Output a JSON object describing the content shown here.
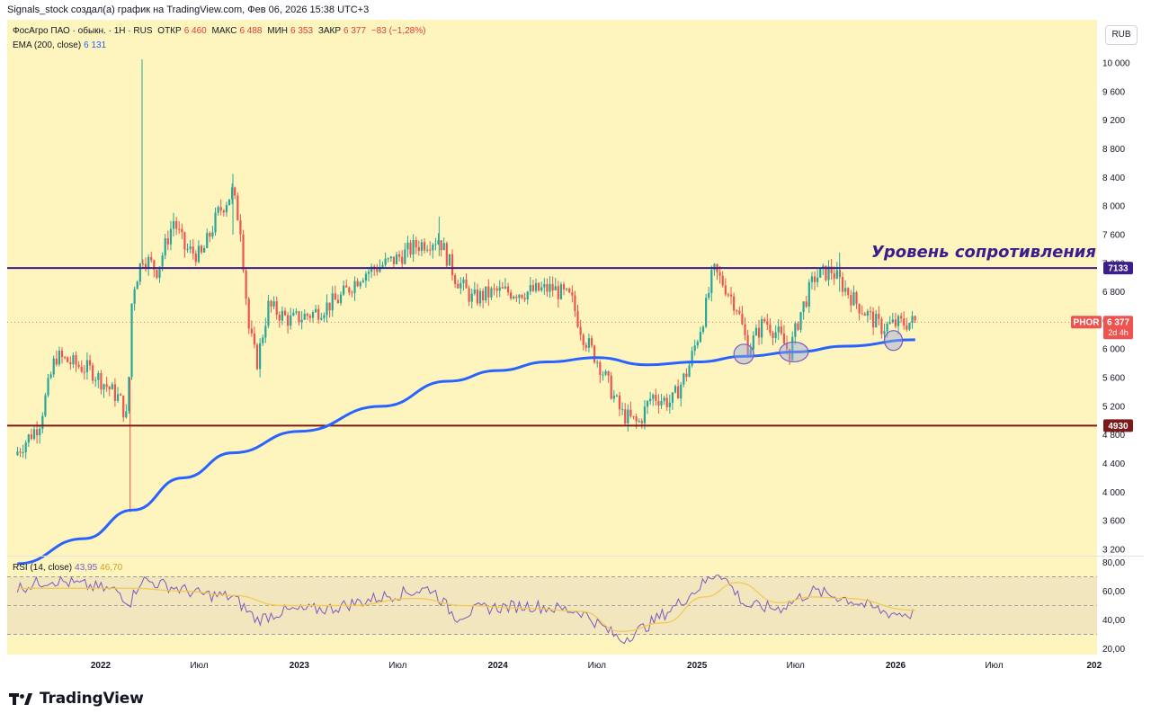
{
  "header": {
    "attribution": "Signals_stock создал(а) график на TradingView.com, Фев 06, 2026 15:38 UTC+3"
  },
  "legend": {
    "symbol": "ФосАгро ПАО · обыкн. · 1Н · RUS",
    "open_label": "ОТКР",
    "open": "6 460",
    "high_label": "МАКС",
    "high": "6 488",
    "low_label": "МИН",
    "low": "6 353",
    "close_label": "ЗАКР",
    "close": "6 377",
    "change": "−83 (−1,28%)",
    "ema_label": "EMA (200, close)",
    "ema_value": "6 131"
  },
  "currency": "RUB",
  "badges": {
    "ticker": "PHOR",
    "price": "6 377",
    "countdown": "2d 4h",
    "resistance": "7133",
    "support": "4930"
  },
  "annotation": "Уровень сопротивления",
  "rsi_legend": {
    "label": "RSI (14, close)",
    "value": "43,95",
    "ma_value": "46,70"
  },
  "footer": {
    "brand": "TradingView",
    "logo": "tradingview-logo-icon"
  },
  "colors": {
    "background": "#fdf5bd",
    "up": "#26a69a",
    "down": "#ef5350",
    "ema": "#2962ff",
    "resistance_line": "#3b1e8c",
    "support_line": "#7b1a1a",
    "rsi_line": "#7e57c2",
    "rsi_ma": "#f2c94c",
    "annotation_text": "#3b1e8c",
    "price_badge": "#ef5350"
  },
  "chart_data": [
    {
      "type": "candlestick",
      "title": "ФосАгро ПАО · обыкн. · 1Н · RUS",
      "x_ticks": [
        "2022",
        "Июл",
        "2023",
        "Июл",
        "2024",
        "Июл",
        "2025",
        "Июл",
        "2026",
        "Июл",
        "202"
      ],
      "y_ticks": [
        3200,
        3600,
        4000,
        4400,
        4800,
        5200,
        5600,
        6000,
        6400,
        6800,
        7200,
        7600,
        8000,
        8400,
        8800,
        9200,
        9600,
        10000
      ],
      "ylim": [
        2950,
        10150
      ],
      "y_tick_labels": [
        "3 200",
        "3 600",
        "4 000",
        "4 400",
        "4 800",
        "5 200",
        "5 600",
        "6 000",
        "6 400",
        "6 800",
        "7 200",
        "7 600",
        "8 000",
        "8 400",
        "8 800",
        "9 200",
        "9 600",
        "10 000"
      ],
      "horizontal_levels": [
        {
          "name": "resistance",
          "value": 7133
        },
        {
          "name": "support",
          "value": 4930
        }
      ],
      "last_price": 6377,
      "price_path": [
        [
          "2021-08-01",
          4520
        ],
        [
          "2021-09-15",
          4950
        ],
        [
          "2021-10-15",
          5900
        ],
        [
          "2021-11-15",
          5800
        ],
        [
          "2021-12-20",
          5700
        ],
        [
          "2022-02-10",
          5300
        ],
        [
          "2022-02-24",
          5000
        ],
        [
          "2022-03-05",
          6800
        ],
        [
          "2022-03-25",
          7300
        ],
        [
          "2022-04-20",
          7100
        ],
        [
          "2022-05-20",
          7800
        ],
        [
          "2022-06-10",
          7400
        ],
        [
          "2022-07-10",
          7300
        ],
        [
          "2022-08-10",
          7900
        ],
        [
          "2022-09-05",
          8200
        ],
        [
          "2022-09-20",
          7700
        ],
        [
          "2022-10-05",
          6300
        ],
        [
          "2022-10-20",
          5800
        ],
        [
          "2022-11-10",
          6600
        ],
        [
          "2022-12-20",
          6400
        ],
        [
          "2023-02-01",
          6500
        ],
        [
          "2023-03-20",
          6700
        ],
        [
          "2023-05-01",
          7050
        ],
        [
          "2023-07-01",
          7250
        ],
        [
          "2023-08-10",
          7450
        ],
        [
          "2023-09-20",
          7550
        ],
        [
          "2023-10-20",
          7000
        ],
        [
          "2023-11-20",
          6700
        ],
        [
          "2024-01-01",
          6800
        ],
        [
          "2024-03-01",
          6800
        ],
        [
          "2024-04-15",
          6850
        ],
        [
          "2024-05-20",
          6700
        ],
        [
          "2024-06-10",
          6200
        ],
        [
          "2024-07-10",
          5800
        ],
        [
          "2024-08-20",
          5100
        ],
        [
          "2024-09-20",
          4950
        ],
        [
          "2024-10-15",
          5350
        ],
        [
          "2024-11-20",
          5250
        ],
        [
          "2024-12-20",
          5700
        ],
        [
          "2025-01-20",
          6500
        ],
        [
          "2025-02-05",
          7100
        ],
        [
          "2025-02-25",
          6900
        ],
        [
          "2025-03-20",
          6600
        ],
        [
          "2025-04-10",
          6000
        ],
        [
          "2025-05-10",
          6400
        ],
        [
          "2025-06-05",
          6200
        ],
        [
          "2025-06-25",
          5950
        ],
        [
          "2025-07-15",
          6500
        ],
        [
          "2025-08-10",
          7000
        ],
        [
          "2025-09-10",
          7100
        ],
        [
          "2025-10-05",
          6850
        ],
        [
          "2025-10-25",
          6650
        ],
        [
          "2025-11-20",
          6450
        ],
        [
          "2025-12-10",
          6300
        ],
        [
          "2026-01-05",
          6350
        ],
        [
          "2026-02-06",
          6377
        ]
      ],
      "series": [
        {
          "name": "EMA (200, close)",
          "x": [
            "2021-08-01",
            "2021-12-01",
            "2022-03-01",
            "2022-06-01",
            "2022-09-01",
            "2023-01-01",
            "2023-06-01",
            "2023-10-01",
            "2024-01-01",
            "2024-04-01",
            "2024-07-01",
            "2024-10-01",
            "2025-01-01",
            "2025-04-01",
            "2025-07-01",
            "2025-10-01",
            "2026-02-06"
          ],
          "values": [
            3000,
            3350,
            3750,
            4200,
            4550,
            4850,
            5200,
            5550,
            5700,
            5820,
            5880,
            5780,
            5820,
            5900,
            5960,
            6040,
            6131
          ]
        }
      ]
    },
    {
      "type": "line",
      "title": "RSI (14, close)",
      "y_ticks": [
        20,
        40,
        60,
        80
      ],
      "y_tick_labels": [
        "20,00",
        "40,00",
        "60,00",
        "80,00"
      ],
      "ylim": [
        16,
        84
      ],
      "band": [
        30,
        70
      ],
      "midline": 50,
      "series": [
        {
          "name": "RSI (14, close)",
          "x": [
            "2021-08-01",
            "2021-10-01",
            "2021-12-01",
            "2022-02-01",
            "2022-02-24",
            "2022-03-15",
            "2022-05-01",
            "2022-07-01",
            "2022-09-01",
            "2022-10-15",
            "2022-12-01",
            "2023-03-01",
            "2023-06-01",
            "2023-09-01",
            "2023-10-15",
            "2023-12-01",
            "2024-03-01",
            "2024-06-01",
            "2024-08-15",
            "2024-10-01",
            "2024-12-01",
            "2025-02-10",
            "2025-04-01",
            "2025-06-01",
            "2025-08-01",
            "2025-10-01",
            "2025-12-15",
            "2026-02-06"
          ],
          "values": [
            62,
            68,
            64,
            60,
            52,
            68,
            64,
            58,
            56,
            40,
            46,
            48,
            56,
            62,
            42,
            48,
            50,
            46,
            26,
            36,
            52,
            74,
            50,
            48,
            60,
            55,
            45,
            43.95
          ]
        },
        {
          "name": "MA",
          "x": [
            "2021-08-01",
            "2021-12-01",
            "2022-03-01",
            "2022-06-01",
            "2022-09-01",
            "2022-12-01",
            "2023-04-01",
            "2023-08-01",
            "2023-11-01",
            "2024-03-01",
            "2024-06-01",
            "2024-08-15",
            "2024-11-01",
            "2025-01-15",
            "2025-03-15",
            "2025-06-01",
            "2025-08-01",
            "2025-10-01",
            "2026-02-06"
          ],
          "values": [
            62,
            62,
            62,
            60,
            57,
            50,
            50,
            55,
            50,
            48,
            46,
            32,
            38,
            56,
            66,
            52,
            56,
            55,
            46.7
          ]
        }
      ]
    }
  ]
}
